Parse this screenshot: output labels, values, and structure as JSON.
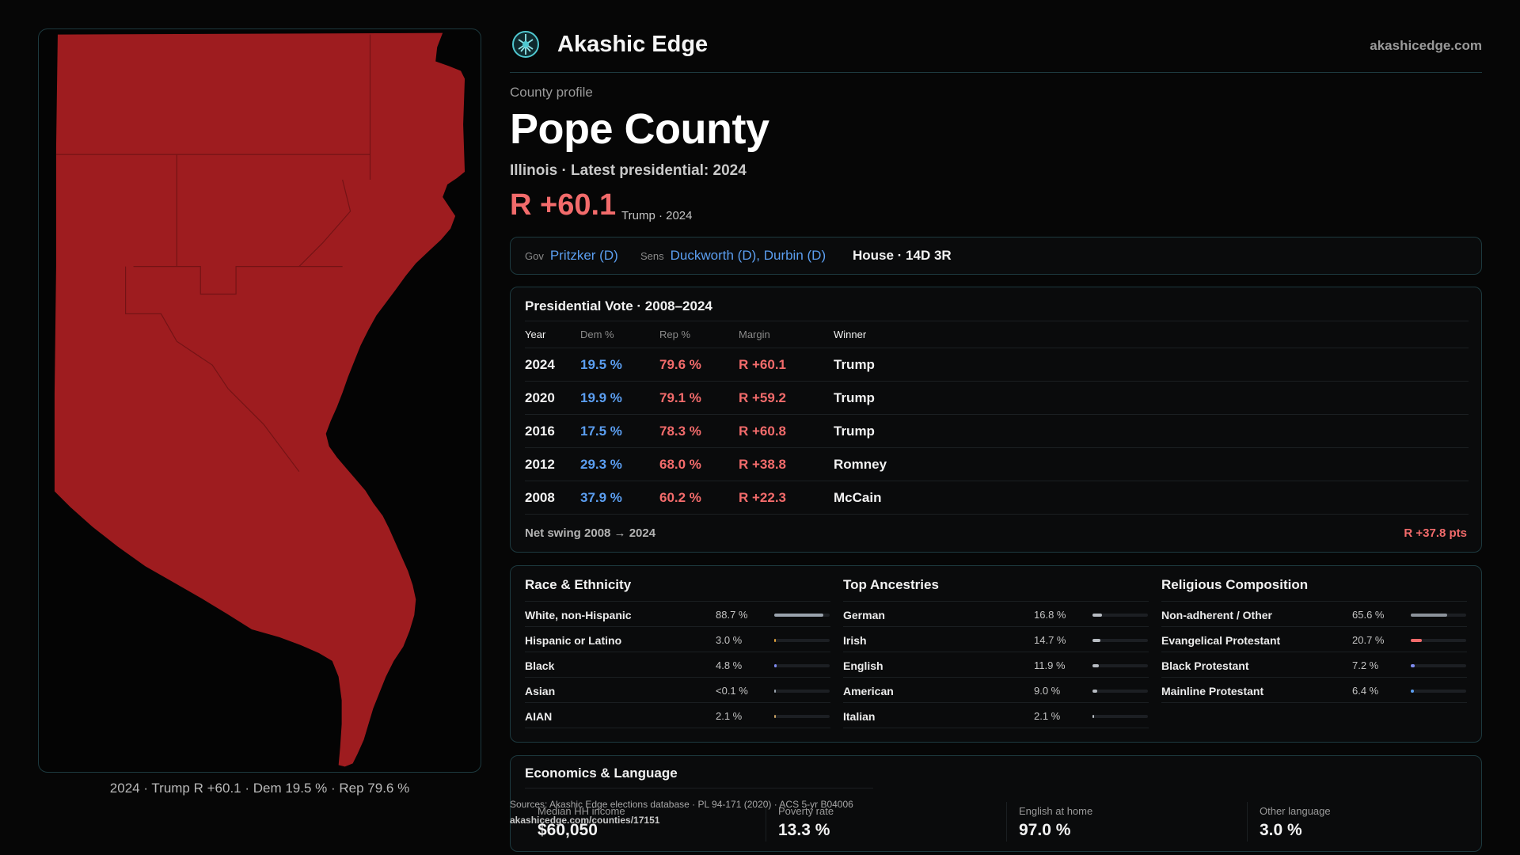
{
  "map": {
    "fill_color": "#9e1c1f",
    "caption": "2024 · Trump R +60.1 · Dem 19.5 % · Rep 79.6 %"
  },
  "header": {
    "brand": "Akashic Edge",
    "url": "akashicedge.com",
    "logo_icon": "compass-tree-logo"
  },
  "county": {
    "eyebrow": "County profile",
    "name": "Pope County",
    "subtitle": "Illinois · Latest presidential: 2024",
    "margin": "R +60.1",
    "margin_note": "Trump · 2024"
  },
  "officials": {
    "gov_label": "Gov",
    "gov": "Pritzker (D)",
    "sens_label": "Sens",
    "sens": "Duckworth (D), Durbin (D)",
    "house": "House · 14D 3R"
  },
  "presidential": {
    "title": "Presidential Vote · 2008–2024",
    "columns": [
      "Year",
      "Dem %",
      "Rep %",
      "Margin",
      "Winner"
    ],
    "rows": [
      {
        "year": "2024",
        "dem": "19.5 %",
        "rep": "79.6 %",
        "margin": "R +60.1",
        "winner": "Trump"
      },
      {
        "year": "2020",
        "dem": "19.9 %",
        "rep": "79.1 %",
        "margin": "R +59.2",
        "winner": "Trump"
      },
      {
        "year": "2016",
        "dem": "17.5 %",
        "rep": "78.3 %",
        "margin": "R +60.8",
        "winner": "Trump"
      },
      {
        "year": "2012",
        "dem": "29.3 %",
        "rep": "68.0 %",
        "margin": "R +38.8",
        "winner": "Romney"
      },
      {
        "year": "2008",
        "dem": "37.9 %",
        "rep": "60.2 %",
        "margin": "R +22.3",
        "winner": "McCain"
      }
    ],
    "swing_label": "Net swing 2008 → 2024",
    "swing_value": "R +37.8 pts"
  },
  "race": {
    "title": "Race & Ethnicity",
    "rows": [
      {
        "name": "White, non-Hispanic",
        "pct": "88.7 %",
        "value": 88.7,
        "color": "#9aa3ad"
      },
      {
        "name": "Hispanic or Latino",
        "pct": "3.0 %",
        "value": 3.0,
        "color": "#e0a23a"
      },
      {
        "name": "Black",
        "pct": "4.8 %",
        "value": 4.8,
        "color": "#7f8cf0"
      },
      {
        "name": "Asian",
        "pct": "<0.1 %",
        "value": 0.05,
        "color": "#9aa3ad"
      },
      {
        "name": "AIAN",
        "pct": "2.1 %",
        "value": 2.1,
        "color": "#c7a062"
      }
    ]
  },
  "ancestry": {
    "title": "Top Ancestries",
    "rows": [
      {
        "name": "German",
        "pct": "16.8 %",
        "value": 16.8,
        "color": "#b7bcc2"
      },
      {
        "name": "Irish",
        "pct": "14.7 %",
        "value": 14.7,
        "color": "#b7bcc2"
      },
      {
        "name": "English",
        "pct": "11.9 %",
        "value": 11.9,
        "color": "#b7bcc2"
      },
      {
        "name": "American",
        "pct": "9.0 %",
        "value": 9.0,
        "color": "#b7bcc2"
      },
      {
        "name": "Italian",
        "pct": "2.1 %",
        "value": 2.1,
        "color": "#b7bcc2"
      }
    ]
  },
  "religion": {
    "title": "Religious Composition",
    "rows": [
      {
        "name": "Non-adherent / Other",
        "pct": "65.6 %",
        "value": 65.6,
        "color": "#8c939b"
      },
      {
        "name": "Evangelical Protestant",
        "pct": "20.7 %",
        "value": 20.7,
        "color": "#f26b6b"
      },
      {
        "name": "Black Protestant",
        "pct": "7.2 %",
        "value": 7.2,
        "color": "#7f8cf0"
      },
      {
        "name": "Mainline Protestant",
        "pct": "6.4 %",
        "value": 6.4,
        "color": "#5b9ef0"
      }
    ]
  },
  "economics": {
    "title": "Economics & Language",
    "stats": [
      {
        "label": "Median HH income",
        "value": "$60,050"
      },
      {
        "label": "Poverty rate",
        "value": "13.3 %"
      },
      {
        "label": "English at home",
        "value": "97.0 %"
      },
      {
        "label": "Other language",
        "value": "3.0 %"
      }
    ]
  },
  "sources": {
    "text": "Sources: Akashic Edge elections database · PL 94-171 (2020) · ACS 5-yr B04006",
    "url": "akashicedge.com/counties/17151"
  }
}
